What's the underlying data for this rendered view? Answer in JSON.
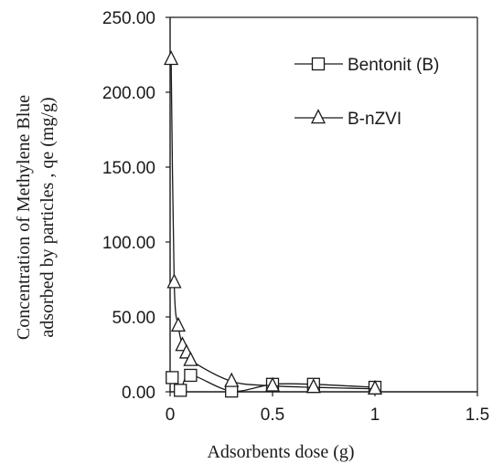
{
  "chart_data": {
    "type": "line",
    "title": "",
    "xlabel": "Adsorbents dose (g)",
    "ylabel_lines": [
      "Concentration of Methylene Blue",
      "adsorbed by particles , qe (mg/g)"
    ],
    "xlim": [
      0,
      1.5
    ],
    "ylim": [
      0,
      250
    ],
    "x_ticks": [
      "0",
      "0.5",
      "1",
      "1.5"
    ],
    "y_ticks": [
      "0.00",
      "50.00",
      "100.00",
      "150.00",
      "200.00",
      "250.00"
    ],
    "grid": false,
    "legend_position": "top-right",
    "series": [
      {
        "name": "Bentonit (B)",
        "marker": "square",
        "x": [
          0.01,
          0.05,
          0.1,
          0.3,
          0.5,
          0.7,
          1.0
        ],
        "y": [
          9.5,
          1.0,
          11.0,
          0.5,
          5.0,
          5.0,
          3.0
        ]
      },
      {
        "name": "B-nZVI",
        "marker": "triangle",
        "x": [
          0.005,
          0.02,
          0.04,
          0.06,
          0.08,
          0.1,
          0.3,
          0.5,
          0.7,
          1.0
        ],
        "y": [
          222.0,
          73.0,
          44.0,
          31.0,
          26.0,
          21.0,
          7.0,
          4.0,
          3.0,
          2.0
        ]
      }
    ],
    "colors": {
      "line": "#1a1a1a",
      "marker_fill": "#ffffff"
    }
  }
}
